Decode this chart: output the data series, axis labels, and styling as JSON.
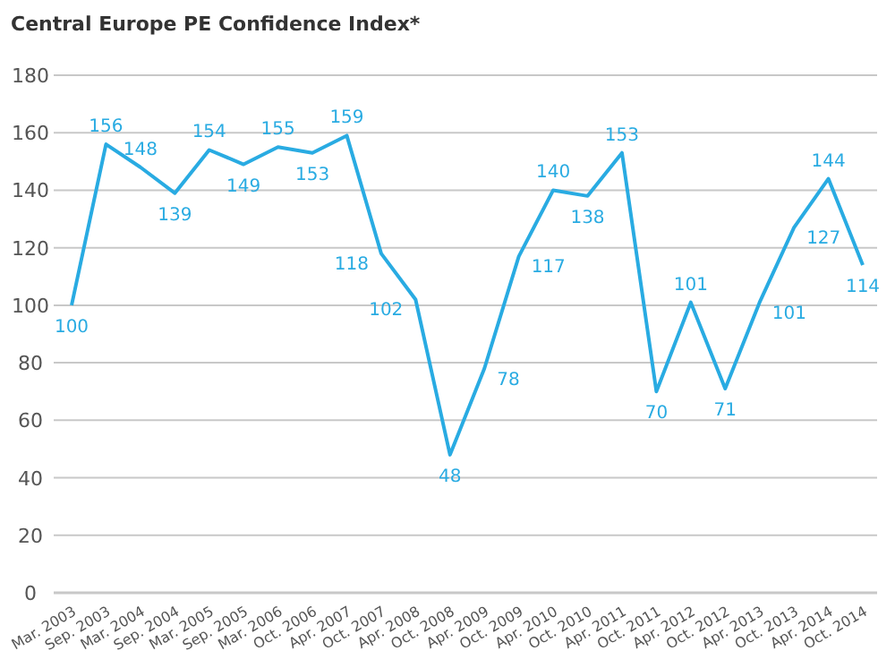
{
  "chart_data": {
    "type": "line",
    "title": "Central Europe PE Confidence Index*",
    "categories": [
      "Mar. 2003",
      "Sep. 2003",
      "Mar. 2004",
      "Sep. 2004",
      "Mar. 2005",
      "Sep. 2005",
      "Mar. 2006",
      "Oct. 2006",
      "Apr. 2007",
      "Oct. 2007",
      "Apr. 2008",
      "Oct. 2008",
      "Apr. 2009",
      "Oct. 2009",
      "Apr. 2010",
      "Oct. 2010",
      "Apr. 2011",
      "Oct. 2011",
      "Apr. 2012",
      "Oct. 2012",
      "Apr. 2013",
      "Oct. 2013",
      "Apr. 2014",
      "Oct. 2014"
    ],
    "series": [
      {
        "color": "#29abe2",
        "values": [
          100,
          156,
          148,
          139,
          154,
          149,
          155,
          153,
          159,
          118,
          102,
          48,
          78,
          117,
          140,
          138,
          153,
          70,
          101,
          71,
          101,
          127,
          144,
          114
        ]
      }
    ],
    "ylim": [
      0,
      180
    ],
    "yticks": [
      0,
      20,
      40,
      60,
      80,
      100,
      120,
      140,
      160,
      180
    ],
    "grid": "y",
    "data_labels": true,
    "marker": "none",
    "line_style": "solid"
  }
}
